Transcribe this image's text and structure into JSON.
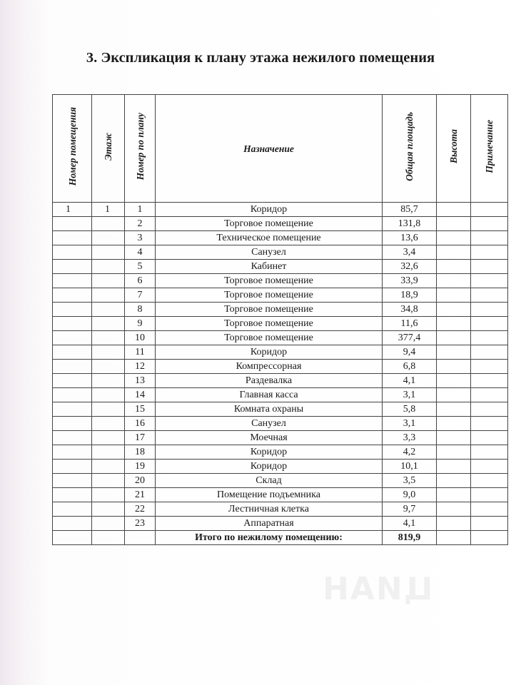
{
  "title": "3. Экспликация к плану этажа нежилого помещения",
  "columns": [
    "Номер помещения",
    "Этаж",
    "Номер по плану",
    "Назначение",
    "Общая площадь",
    "Высота",
    "Примечание"
  ],
  "rows": [
    {
      "room": "1",
      "floor": "1",
      "plan": "1",
      "purpose": "Коридор",
      "area": "85,7"
    },
    {
      "room": "",
      "floor": "",
      "plan": "2",
      "purpose": "Торговое помещение",
      "area": "131,8"
    },
    {
      "room": "",
      "floor": "",
      "plan": "3",
      "purpose": "Техническое помещение",
      "area": "13,6"
    },
    {
      "room": "",
      "floor": "",
      "plan": "4",
      "purpose": "Санузел",
      "area": "3,4"
    },
    {
      "room": "",
      "floor": "",
      "plan": "5",
      "purpose": "Кабинет",
      "area": "32,6"
    },
    {
      "room": "",
      "floor": "",
      "plan": "6",
      "purpose": "Торговое помещение",
      "area": "33,9"
    },
    {
      "room": "",
      "floor": "",
      "plan": "7",
      "purpose": "Торговое помещение",
      "area": "18,9"
    },
    {
      "room": "",
      "floor": "",
      "plan": "8",
      "purpose": "Торговое помещение",
      "area": "34,8"
    },
    {
      "room": "",
      "floor": "",
      "plan": "9",
      "purpose": "Торговое помещение",
      "area": "11,6"
    },
    {
      "room": "",
      "floor": "",
      "plan": "10",
      "purpose": "Торговое помещение",
      "area": "377,4"
    },
    {
      "room": "",
      "floor": "",
      "plan": "11",
      "purpose": "Коридор",
      "area": "9,4"
    },
    {
      "room": "",
      "floor": "",
      "plan": "12",
      "purpose": "Компрессорная",
      "area": "6,8"
    },
    {
      "room": "",
      "floor": "",
      "plan": "13",
      "purpose": "Раздевалка",
      "area": "4,1"
    },
    {
      "room": "",
      "floor": "",
      "plan": "14",
      "purpose": "Главная касса",
      "area": "3,1"
    },
    {
      "room": "",
      "floor": "",
      "plan": "15",
      "purpose": "Комната охраны",
      "area": "5,8"
    },
    {
      "room": "",
      "floor": "",
      "plan": "16",
      "purpose": "Санузел",
      "area": "3,1"
    },
    {
      "room": "",
      "floor": "",
      "plan": "17",
      "purpose": "Моечная",
      "area": "3,3"
    },
    {
      "room": "",
      "floor": "",
      "plan": "18",
      "purpose": "Коридор",
      "area": "4,2"
    },
    {
      "room": "",
      "floor": "",
      "plan": "19",
      "purpose": "Коридор",
      "area": "10,1"
    },
    {
      "room": "",
      "floor": "",
      "plan": "20",
      "purpose": "Склад",
      "area": "3,5"
    },
    {
      "room": "",
      "floor": "",
      "plan": "21",
      "purpose": "Помещение подъемника",
      "area": "9,0"
    },
    {
      "room": "",
      "floor": "",
      "plan": "22",
      "purpose": "Лестничная клетка",
      "area": "9,7"
    },
    {
      "room": "",
      "floor": "",
      "plan": "23",
      "purpose": "Аппаратная",
      "area": "4,1"
    }
  ],
  "total": {
    "label": "Итого по нежилому помещению:",
    "area": "819,9"
  },
  "watermark": "ЦИАН"
}
